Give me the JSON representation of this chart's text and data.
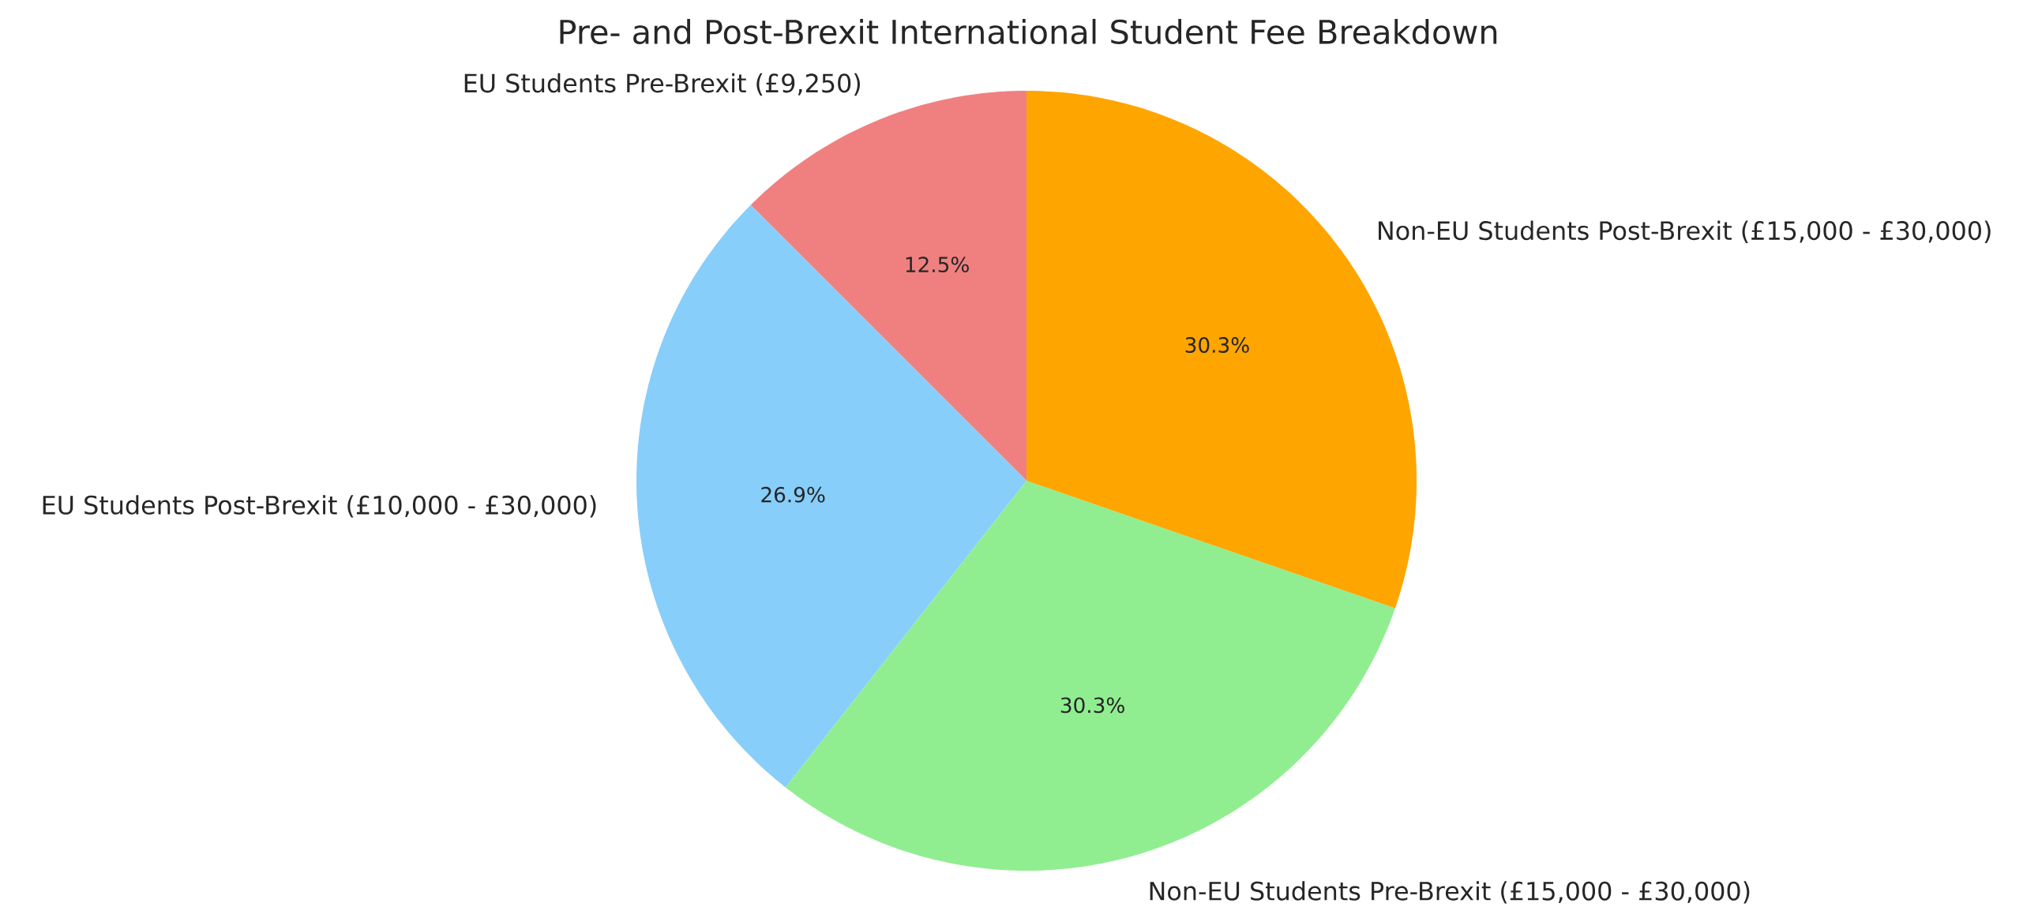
{
  "chart_data": {
    "type": "pie",
    "title": "Pre- and Post-Brexit International Student Fee Breakdown",
    "categories": [
      "EU Students Pre-Brexit (£9,250)",
      "EU Students Post-Brexit (£10,000 - £30,000)",
      "Non-EU Students Pre-Brexit (£15,000 - £30,000)",
      "Non-EU Students Post-Brexit (£15,000 - £30,000)"
    ],
    "values": [
      12.5,
      26.9,
      30.3,
      30.3
    ],
    "value_labels": [
      "12.5%",
      "26.9%",
      "30.3%",
      "30.3%"
    ],
    "colors": [
      "#f08080",
      "#87cefa",
      "#90ee90",
      "#ffa500"
    ]
  }
}
